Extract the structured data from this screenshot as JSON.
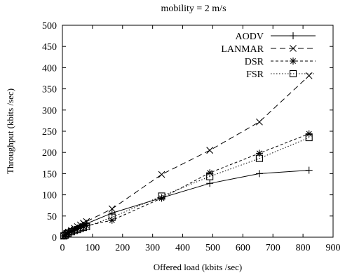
{
  "chart_data": {
    "type": "line",
    "title": "mobility = 2 m/s",
    "xlabel": "Offered load (kbits /sec)",
    "ylabel": "Throughput (kbits /sec)",
    "xlim": [
      0,
      900
    ],
    "ylim": [
      0,
      500
    ],
    "xticks": [
      0,
      100,
      200,
      300,
      400,
      500,
      600,
      700,
      800,
      900
    ],
    "yticks": [
      0,
      50,
      100,
      150,
      200,
      250,
      300,
      350,
      400,
      450,
      500
    ],
    "grid": false,
    "legend_position": "top-right",
    "series": [
      {
        "name": "AODV",
        "line_style": "solid",
        "marker": "plus",
        "points": [
          [
            5,
            3
          ],
          [
            10,
            6
          ],
          [
            15,
            8
          ],
          [
            20,
            11
          ],
          [
            30,
            14
          ],
          [
            40,
            17
          ],
          [
            50,
            21
          ],
          [
            60,
            25
          ],
          [
            70,
            28
          ],
          [
            80,
            32
          ],
          [
            165,
            57
          ],
          [
            330,
            93
          ],
          [
            490,
            127
          ],
          [
            655,
            150
          ],
          [
            820,
            158
          ]
        ]
      },
      {
        "name": "LANMAR",
        "line_style": "long-dash",
        "marker": "x",
        "points": [
          [
            5,
            3
          ],
          [
            10,
            6
          ],
          [
            15,
            9
          ],
          [
            20,
            12
          ],
          [
            30,
            16
          ],
          [
            40,
            21
          ],
          [
            50,
            25
          ],
          [
            60,
            29
          ],
          [
            70,
            33
          ],
          [
            80,
            37
          ],
          [
            165,
            67
          ],
          [
            330,
            148
          ],
          [
            490,
            205
          ],
          [
            655,
            272
          ],
          [
            820,
            381
          ]
        ]
      },
      {
        "name": "DSR",
        "line_style": "short-dash",
        "marker": "star",
        "points": [
          [
            5,
            3
          ],
          [
            10,
            5
          ],
          [
            15,
            8
          ],
          [
            20,
            11
          ],
          [
            30,
            13
          ],
          [
            40,
            17
          ],
          [
            50,
            20
          ],
          [
            60,
            23
          ],
          [
            70,
            25
          ],
          [
            80,
            27
          ],
          [
            165,
            40
          ],
          [
            330,
            92
          ],
          [
            490,
            152
          ],
          [
            655,
            198
          ],
          [
            820,
            244
          ]
        ]
      },
      {
        "name": "FSR",
        "line_style": "dotted",
        "marker": "square",
        "points": [
          [
            5,
            3
          ],
          [
            10,
            5
          ],
          [
            15,
            8
          ],
          [
            20,
            10
          ],
          [
            30,
            13
          ],
          [
            40,
            16
          ],
          [
            50,
            18
          ],
          [
            60,
            21
          ],
          [
            70,
            23
          ],
          [
            80,
            25
          ],
          [
            165,
            47
          ],
          [
            330,
            97
          ],
          [
            490,
            143
          ],
          [
            655,
            186
          ],
          [
            820,
            235
          ]
        ]
      }
    ]
  }
}
